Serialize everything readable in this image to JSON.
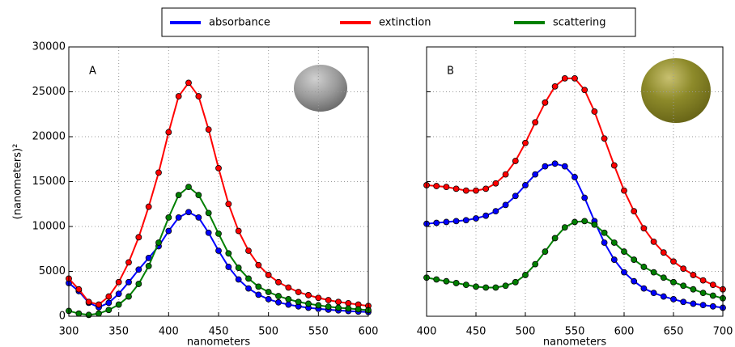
{
  "chart_data": [
    {
      "type": "line",
      "panel_label": "A",
      "x_label": "nanometers",
      "y_label": "(nanometers)²",
      "x": [
        300,
        310,
        320,
        330,
        340,
        350,
        360,
        370,
        380,
        390,
        400,
        410,
        420,
        430,
        440,
        450,
        460,
        470,
        480,
        490,
        500,
        510,
        520,
        530,
        540,
        550,
        560,
        570,
        580,
        590,
        600
      ],
      "series": [
        {
          "name": "absorbance",
          "color": "#0000ff",
          "values": [
            3700,
            2800,
            1500,
            1000,
            1500,
            2500,
            3800,
            5200,
            6500,
            7800,
            9500,
            11000,
            11600,
            11000,
            9300,
            7300,
            5500,
            4100,
            3100,
            2400,
            1900,
            1550,
            1300,
            1100,
            950,
            830,
            730,
            650,
            580,
            520,
            470
          ]
        },
        {
          "name": "extinction",
          "color": "#ff0000",
          "values": [
            4200,
            3000,
            1600,
            1300,
            2200,
            3800,
            6000,
            8800,
            12200,
            16000,
            20500,
            24500,
            26000,
            24500,
            20800,
            16500,
            12500,
            9500,
            7300,
            5700,
            4600,
            3800,
            3200,
            2700,
            2350,
            2050,
            1800,
            1600,
            1450,
            1300,
            1150
          ]
        },
        {
          "name": "scattering",
          "color": "#008000",
          "values": [
            600,
            300,
            150,
            300,
            700,
            1300,
            2200,
            3600,
            5600,
            8200,
            11000,
            13500,
            14400,
            13500,
            11500,
            9200,
            7000,
            5400,
            4200,
            3300,
            2700,
            2250,
            1900,
            1600,
            1400,
            1220,
            1070,
            950,
            870,
            780,
            680
          ]
        }
      ],
      "xlim": [
        300,
        600
      ],
      "xticks": [
        300,
        350,
        400,
        450,
        500,
        550,
        600
      ],
      "ylim": [
        0,
        30000
      ],
      "yticks": [
        0,
        5000,
        10000,
        15000,
        20000,
        25000,
        30000
      ],
      "ytick_labels": true,
      "grid": true
    },
    {
      "type": "line",
      "panel_label": "B",
      "x_label": "nanometers",
      "x": [
        400,
        410,
        420,
        430,
        440,
        450,
        460,
        470,
        480,
        490,
        500,
        510,
        520,
        530,
        540,
        550,
        560,
        570,
        580,
        590,
        600,
        610,
        620,
        630,
        640,
        650,
        660,
        670,
        680,
        690,
        700
      ],
      "series": [
        {
          "name": "absorbance",
          "color": "#0000ff",
          "values": [
            10300,
            10400,
            10500,
            10600,
            10700,
            10900,
            11200,
            11700,
            12400,
            13400,
            14600,
            15800,
            16700,
            17000,
            16700,
            15500,
            13200,
            10600,
            8200,
            6300,
            4900,
            3900,
            3100,
            2600,
            2200,
            1900,
            1600,
            1400,
            1250,
            1100,
            950
          ]
        },
        {
          "name": "extinction",
          "color": "#ff0000",
          "values": [
            14600,
            14500,
            14400,
            14200,
            14000,
            14000,
            14200,
            14800,
            15800,
            17300,
            19300,
            21600,
            23800,
            25600,
            26500,
            26500,
            25200,
            22800,
            19800,
            16800,
            14000,
            11700,
            9800,
            8300,
            7100,
            6100,
            5300,
            4600,
            4000,
            3500,
            3000
          ]
        },
        {
          "name": "scattering",
          "color": "#008000",
          "values": [
            4300,
            4100,
            3900,
            3700,
            3500,
            3300,
            3200,
            3200,
            3400,
            3800,
            4600,
            5800,
            7200,
            8700,
            9900,
            10500,
            10600,
            10200,
            9300,
            8200,
            7200,
            6300,
            5500,
            4900,
            4300,
            3800,
            3400,
            3000,
            2600,
            2300,
            2000
          ]
        }
      ],
      "xlim": [
        400,
        700
      ],
      "xticks": [
        400,
        450,
        500,
        550,
        600,
        650,
        700
      ],
      "ylim": [
        0,
        30000
      ],
      "yticks": [
        0,
        5000,
        10000,
        15000,
        20000,
        25000,
        30000
      ],
      "ytick_labels": false,
      "grid": true
    }
  ]
}
